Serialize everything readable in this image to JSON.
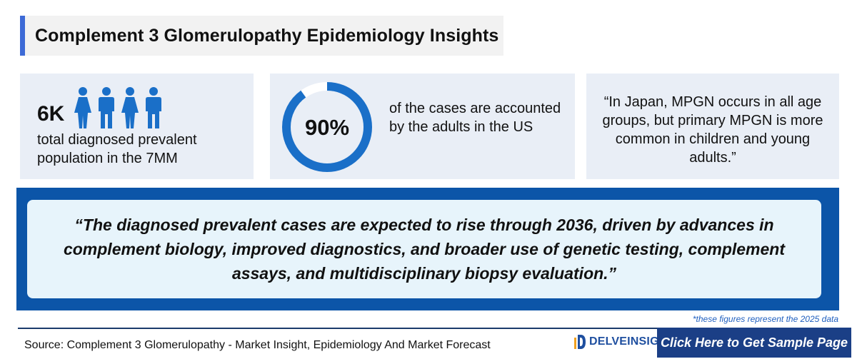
{
  "title": "Complement 3 Glomerulopathy Epidemiology Insights",
  "card1": {
    "value": "6K",
    "text": "total diagnosed prevalent population in the 7MM",
    "icons": [
      "female-person-icon",
      "male-person-icon",
      "female-person-icon",
      "male-person-icon"
    ]
  },
  "card2": {
    "percent_label": "90%",
    "percent_value": 0.9,
    "text": "of the cases are accounted by the adults in the US"
  },
  "card3": {
    "text": "“In Japan, MPGN occurs in all age groups, but primary MPGN is more common in children and young adults.”"
  },
  "quote": {
    "text": "“The diagnosed prevalent cases are expected to rise through 2036, driven by advances in complement biology, improved diagnostics, and broader use of genetic testing, complement assays, and multidisciplinary biopsy evaluation.”"
  },
  "footnote": "*these figures represent the 2025 data",
  "source": "Source: Complement 3 Glomerulopathy - Market Insight, Epidemiology And Market Forecast",
  "logo": {
    "text": "DELVEINSIGHT",
    "icon": "delveinsight-logo-icon"
  },
  "cta": {
    "label": "Click Here to Get Sample Page"
  },
  "colors": {
    "accent": "#3d6ad6",
    "people": "#1a6fc8",
    "ring": "#1a6fc8",
    "ring_track": "#ffffff",
    "band": "#0c55a8",
    "cta": "#1b3f86"
  }
}
